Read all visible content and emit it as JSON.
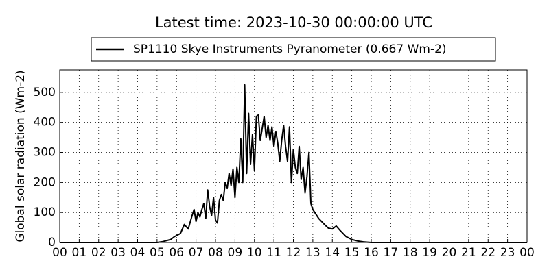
{
  "chart_data": {
    "type": "line",
    "title": "Latest time: 2023-10-30 00:00:00 UTC",
    "y_label": "Global solar radiation (Wm-2)",
    "x": [
      0,
      5,
      5.3,
      5.7,
      5.9,
      6.2,
      6.4,
      6.6,
      6.8,
      6.9,
      7.0,
      7.1,
      7.2,
      7.3,
      7.4,
      7.5,
      7.6,
      7.7,
      7.8,
      7.9,
      8.0,
      8.1,
      8.2,
      8.3,
      8.4,
      8.5,
      8.6,
      8.7,
      8.8,
      8.9,
      9.0,
      9.1,
      9.2,
      9.3,
      9.4,
      9.5,
      9.6,
      9.7,
      9.8,
      9.9,
      10.0,
      10.1,
      10.2,
      10.3,
      10.4,
      10.5,
      10.6,
      10.7,
      10.8,
      10.9,
      11.0,
      11.1,
      11.2,
      11.3,
      11.4,
      11.5,
      11.6,
      11.7,
      11.8,
      11.9,
      12.0,
      12.1,
      12.2,
      12.3,
      12.4,
      12.5,
      12.6,
      12.7,
      12.8,
      12.9,
      13.0,
      13.3,
      13.6,
      13.8,
      14.0,
      14.2,
      14.4,
      14.7,
      15.0,
      15.3,
      15.6,
      16,
      24
    ],
    "series": [
      {
        "name": "SP1110 Skye Instruments Pyranometer (0.667 Wm-2)",
        "color": "#000000",
        "values": [
          0,
          0,
          3,
          10,
          20,
          30,
          60,
          45,
          90,
          110,
          70,
          100,
          85,
          110,
          130,
          80,
          175,
          120,
          90,
          150,
          75,
          65,
          140,
          160,
          140,
          200,
          180,
          230,
          190,
          245,
          150,
          250,
          200,
          345,
          200,
          525,
          230,
          430,
          260,
          360,
          240,
          420,
          425,
          340,
          380,
          420,
          350,
          390,
          340,
          385,
          320,
          370,
          330,
          270,
          340,
          390,
          320,
          270,
          385,
          200,
          310,
          250,
          230,
          320,
          210,
          250,
          165,
          220,
          300,
          130,
          110,
          80,
          60,
          48,
          45,
          55,
          40,
          20,
          10,
          5,
          2,
          0,
          0
        ]
      }
    ],
    "xlim": [
      0,
      24
    ],
    "xticks": [
      {
        "value": 0,
        "label": "00"
      },
      {
        "value": 1,
        "label": "01"
      },
      {
        "value": 2,
        "label": "02"
      },
      {
        "value": 3,
        "label": "03"
      },
      {
        "value": 4,
        "label": "04"
      },
      {
        "value": 5,
        "label": "05"
      },
      {
        "value": 6,
        "label": "06"
      },
      {
        "value": 7,
        "label": "07"
      },
      {
        "value": 8,
        "label": "08"
      },
      {
        "value": 9,
        "label": "09"
      },
      {
        "value": 10,
        "label": "10"
      },
      {
        "value": 11,
        "label": "11"
      },
      {
        "value": 12,
        "label": "12"
      },
      {
        "value": 13,
        "label": "13"
      },
      {
        "value": 14,
        "label": "14"
      },
      {
        "value": 15,
        "label": "15"
      },
      {
        "value": 16,
        "label": "16"
      },
      {
        "value": 17,
        "label": "17"
      },
      {
        "value": 18,
        "label": "18"
      },
      {
        "value": 19,
        "label": "19"
      },
      {
        "value": 20,
        "label": "20"
      },
      {
        "value": 21,
        "label": "21"
      },
      {
        "value": 22,
        "label": "22"
      },
      {
        "value": 23,
        "label": "23"
      },
      {
        "value": 24,
        "label": "00"
      }
    ],
    "ylim": [
      0,
      575
    ],
    "yticks": [
      0,
      100,
      200,
      300,
      400,
      500
    ],
    "grid": true
  }
}
